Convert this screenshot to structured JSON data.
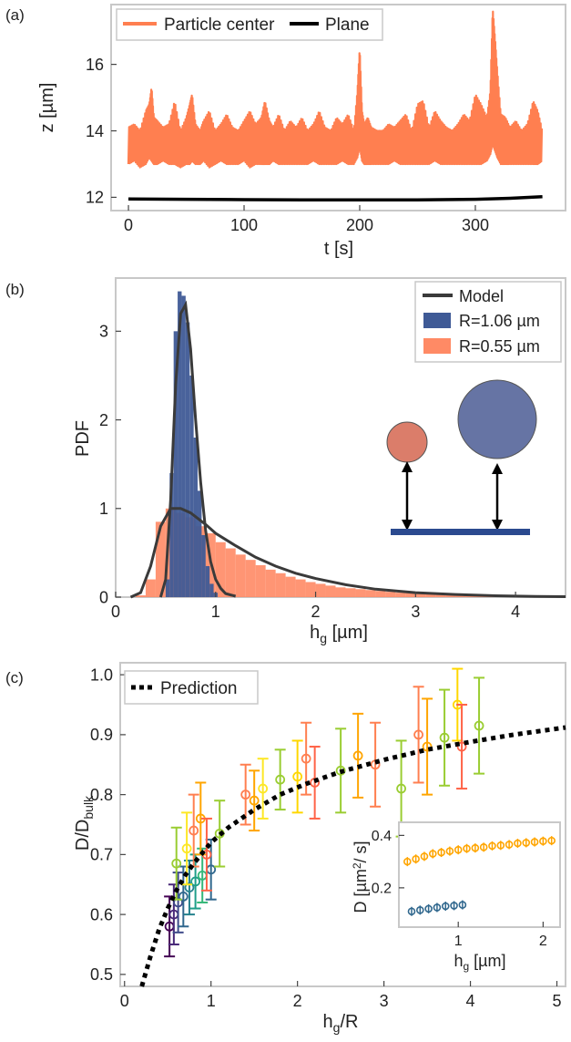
{
  "colors": {
    "orange": "#ff7f50",
    "orange_fill": "#ff8a65",
    "blue": "#3f5a96",
    "blue_circle": "#6674a4",
    "small_circle": "#db7d6a",
    "model": "#3a3a3a",
    "plane": "#000000",
    "frame": "#c8c8c8",
    "gray_curve": "#9a9a9a",
    "plane_bar": "#2b4a8f"
  },
  "panels": {
    "a": {
      "label": "(a)"
    },
    "b": {
      "label": "(b)"
    },
    "c": {
      "label": "(c)"
    }
  },
  "chart_data": [
    {
      "id": "a",
      "type": "line",
      "xlabel": "t [s]",
      "ylabel": "z [µm]",
      "xlim": [
        -15,
        378
      ],
      "ylim": [
        11.6,
        17.8
      ],
      "xticks": [
        0,
        100,
        200,
        300
      ],
      "yticks": [
        12,
        14,
        16
      ],
      "legend_position": "top",
      "series": [
        {
          "name": "Particle center",
          "color": "#ff7f50",
          "t": [
            0,
            5,
            10,
            15,
            18,
            20,
            22,
            25,
            30,
            35,
            40,
            45,
            50,
            53,
            55,
            58,
            62,
            65,
            70,
            75,
            80,
            85,
            90,
            95,
            100,
            105,
            110,
            115,
            118,
            122,
            125,
            130,
            135,
            140,
            145,
            150,
            155,
            160,
            165,
            170,
            175,
            180,
            185,
            190,
            195,
            198,
            200,
            202,
            204,
            207,
            210,
            215,
            220,
            225,
            230,
            235,
            240,
            245,
            250,
            255,
            260,
            265,
            270,
            275,
            280,
            285,
            290,
            295,
            300,
            305,
            310,
            313,
            315,
            317,
            319,
            322,
            326,
            330,
            335,
            340,
            345,
            350,
            354,
            358
          ],
          "z_upper": [
            14.1,
            14.2,
            14.0,
            14.6,
            14.8,
            15.3,
            14.4,
            14.3,
            14.1,
            14.2,
            14.9,
            14.0,
            14.4,
            14.8,
            15.1,
            14.2,
            14.0,
            14.3,
            14.6,
            14.0,
            14.2,
            14.5,
            14.1,
            14.0,
            14.3,
            14.6,
            14.2,
            14.4,
            14.9,
            14.3,
            14.1,
            14.5,
            14.0,
            14.3,
            14.1,
            14.4,
            14.0,
            14.2,
            14.6,
            14.1,
            14.0,
            14.4,
            14.2,
            14.5,
            14.0,
            15.2,
            16.5,
            14.6,
            14.2,
            14.4,
            14.1,
            14.0,
            14.0,
            14.2,
            14.1,
            14.3,
            14.5,
            14.0,
            14.8,
            14.9,
            14.1,
            14.6,
            14.3,
            14.1,
            14.0,
            14.2,
            14.5,
            14.3,
            15.1,
            14.8,
            14.4,
            15.2,
            17.7,
            16.8,
            15.8,
            14.5,
            14.4,
            14.1,
            14.3,
            14.0,
            14.2,
            14.9,
            14.6,
            14.0
          ],
          "z_lower": [
            13.0,
            13.1,
            12.9,
            13.0,
            13.2,
            13.1,
            13.0,
            13.0,
            13.1,
            13.0,
            13.0,
            12.9,
            13.0,
            13.0,
            13.1,
            13.0,
            13.0,
            13.1,
            12.9,
            13.0,
            13.1,
            13.0,
            13.0,
            13.0,
            13.1,
            12.9,
            13.0,
            13.0,
            13.0,
            13.0,
            13.1,
            13.0,
            13.0,
            13.0,
            13.0,
            13.0,
            13.0,
            13.1,
            13.0,
            13.0,
            13.0,
            13.0,
            13.1,
            13.0,
            13.0,
            13.2,
            13.5,
            13.1,
            13.0,
            13.0,
            13.0,
            13.0,
            13.0,
            13.0,
            13.1,
            13.0,
            13.0,
            13.0,
            13.0,
            13.0,
            13.0,
            13.1,
            13.0,
            13.0,
            13.0,
            13.0,
            13.0,
            13.0,
            13.0,
            13.0,
            13.1,
            13.3,
            13.6,
            13.4,
            13.2,
            13.0,
            13.0,
            13.0,
            13.0,
            13.0,
            13.0,
            13.0,
            13.0,
            13.1
          ]
        },
        {
          "name": "Plane",
          "color": "#000000",
          "t": [
            0,
            50,
            100,
            150,
            200,
            250,
            300,
            330,
            358
          ],
          "z": [
            11.95,
            11.94,
            11.93,
            11.92,
            11.92,
            11.92,
            11.94,
            11.97,
            12.02
          ]
        }
      ]
    },
    {
      "id": "b",
      "type": "bar",
      "xlabel": "hg [µm]",
      "ylabel": "PDF",
      "xlim": [
        0,
        4.5
      ],
      "ylim": [
        0,
        3.6
      ],
      "xticks": [
        0,
        1,
        2,
        3,
        4
      ],
      "yticks": [
        0,
        1,
        2,
        3
      ],
      "legend_position": "top-right",
      "legend": [
        "Model",
        "R=1.06 µm",
        "R=0.55 µm"
      ],
      "hist_large": {
        "name": "R=1.06 µm",
        "color": "#3f5a96",
        "x": [
          0.52,
          0.56,
          0.6,
          0.64,
          0.68,
          0.72,
          0.76,
          0.8,
          0.84,
          0.88,
          0.92,
          0.96,
          1.0
        ],
        "values": [
          0.2,
          1.4,
          3.0,
          3.45,
          3.4,
          3.1,
          2.5,
          1.8,
          1.2,
          0.7,
          0.35,
          0.15,
          0.05
        ]
      },
      "hist_small": {
        "name": "R=0.55 µm",
        "color": "#ff8a65",
        "x": [
          0.25,
          0.35,
          0.45,
          0.55,
          0.65,
          0.75,
          0.85,
          0.95,
          1.05,
          1.15,
          1.25,
          1.35,
          1.45,
          1.55,
          1.65,
          1.75,
          1.85,
          1.95,
          2.05,
          2.15,
          2.25,
          2.35,
          2.45,
          2.55,
          2.65,
          2.75,
          2.85,
          2.95,
          3.05,
          3.15,
          3.25,
          3.35,
          3.45,
          3.55,
          3.65,
          3.75,
          3.85,
          3.95,
          4.05,
          4.15
        ],
        "values": [
          0.02,
          0.2,
          0.85,
          1.0,
          0.95,
          0.9,
          0.8,
          0.72,
          0.62,
          0.55,
          0.48,
          0.42,
          0.36,
          0.31,
          0.27,
          0.23,
          0.2,
          0.17,
          0.15,
          0.13,
          0.11,
          0.1,
          0.09,
          0.08,
          0.07,
          0.06,
          0.05,
          0.05,
          0.04,
          0.04,
          0.03,
          0.03,
          0.03,
          0.02,
          0.02,
          0.02,
          0.02,
          0.01,
          0.01,
          0.01
        ]
      },
      "model_large": {
        "x": [
          0.45,
          0.5,
          0.55,
          0.6,
          0.65,
          0.7,
          0.75,
          0.8,
          0.85,
          0.9,
          0.95,
          1.0,
          1.05,
          1.1,
          1.2
        ],
        "y": [
          0.0,
          0.2,
          1.1,
          2.4,
          3.2,
          3.3,
          2.8,
          2.0,
          1.3,
          0.75,
          0.4,
          0.2,
          0.1,
          0.04,
          0.01
        ]
      },
      "model_small": {
        "x": [
          0.15,
          0.25,
          0.35,
          0.45,
          0.55,
          0.65,
          0.75,
          0.9,
          1.0,
          1.2,
          1.4,
          1.6,
          1.8,
          2.0,
          2.3,
          2.6,
          3.0,
          3.4,
          3.8,
          4.2,
          4.5
        ],
        "y": [
          0.0,
          0.05,
          0.35,
          0.8,
          1.0,
          1.0,
          0.95,
          0.82,
          0.72,
          0.58,
          0.45,
          0.35,
          0.27,
          0.21,
          0.14,
          0.09,
          0.05,
          0.03,
          0.015,
          0.008,
          0.005
        ]
      }
    },
    {
      "id": "c",
      "type": "scatter",
      "xlabel": "hg/R",
      "ylabel": "D/Dbulk",
      "xlim": [
        -0.05,
        5.1
      ],
      "ylim": [
        0.48,
        1.02
      ],
      "xticks": [
        0,
        1,
        2,
        3,
        4,
        5
      ],
      "yticks": [
        0.5,
        0.6,
        0.7,
        0.8,
        0.9,
        1.0
      ],
      "legend_position": "top-left",
      "legend": [
        "Prediction"
      ],
      "prediction": {
        "x": [
          0.2,
          0.3,
          0.4,
          0.5,
          0.6,
          0.7,
          0.8,
          1.0,
          1.2,
          1.5,
          1.8,
          2.1,
          2.5,
          3.0,
          3.5,
          4.0,
          4.5,
          5.1
        ],
        "y": [
          0.48,
          0.53,
          0.575,
          0.61,
          0.64,
          0.665,
          0.685,
          0.72,
          0.745,
          0.775,
          0.8,
          0.818,
          0.838,
          0.858,
          0.875,
          0.888,
          0.9,
          0.912
        ]
      },
      "points": [
        {
          "x": 0.52,
          "y": 0.58,
          "err": 0.05,
          "color": "#440154"
        },
        {
          "x": 0.57,
          "y": 0.6,
          "err": 0.05,
          "color": "#482878"
        },
        {
          "x": 0.62,
          "y": 0.62,
          "err": 0.05,
          "color": "#3e4a89"
        },
        {
          "x": 0.68,
          "y": 0.63,
          "err": 0.05,
          "color": "#31688e"
        },
        {
          "x": 0.75,
          "y": 0.645,
          "err": 0.045,
          "color": "#26828e"
        },
        {
          "x": 0.82,
          "y": 0.655,
          "err": 0.045,
          "color": "#1f9e89"
        },
        {
          "x": 0.9,
          "y": 0.665,
          "err": 0.045,
          "color": "#35b779"
        },
        {
          "x": 1.0,
          "y": 0.675,
          "err": 0.05,
          "color": "#31688e"
        },
        {
          "x": 0.6,
          "y": 0.685,
          "err": 0.06,
          "color": "#9acd32"
        },
        {
          "x": 0.72,
          "y": 0.71,
          "err": 0.06,
          "color": "#fde725"
        },
        {
          "x": 0.8,
          "y": 0.74,
          "err": 0.06,
          "color": "#ff7f50"
        },
        {
          "x": 0.88,
          "y": 0.76,
          "err": 0.06,
          "color": "#ffa500"
        },
        {
          "x": 0.95,
          "y": 0.7,
          "err": 0.06,
          "color": "#ff6347"
        },
        {
          "x": 1.1,
          "y": 0.735,
          "err": 0.055,
          "color": "#9acd32"
        },
        {
          "x": 1.4,
          "y": 0.8,
          "err": 0.05,
          "color": "#ff7f50"
        },
        {
          "x": 1.5,
          "y": 0.79,
          "err": 0.05,
          "color": "#ffa500"
        },
        {
          "x": 1.6,
          "y": 0.81,
          "err": 0.05,
          "color": "#fde725"
        },
        {
          "x": 1.8,
          "y": 0.825,
          "err": 0.05,
          "color": "#9acd32"
        },
        {
          "x": 2.0,
          "y": 0.83,
          "err": 0.06,
          "color": "#ffd700"
        },
        {
          "x": 2.1,
          "y": 0.86,
          "err": 0.06,
          "color": "#ff7f50"
        },
        {
          "x": 2.2,
          "y": 0.82,
          "err": 0.06,
          "color": "#ff6347"
        },
        {
          "x": 2.5,
          "y": 0.84,
          "err": 0.07,
          "color": "#9acd32"
        },
        {
          "x": 2.7,
          "y": 0.865,
          "err": 0.07,
          "color": "#ffa500"
        },
        {
          "x": 2.9,
          "y": 0.85,
          "err": 0.07,
          "color": "#ff7f50"
        },
        {
          "x": 3.2,
          "y": 0.81,
          "err": 0.08,
          "color": "#9acd32"
        },
        {
          "x": 3.4,
          "y": 0.9,
          "err": 0.08,
          "color": "#ff7f50"
        },
        {
          "x": 3.5,
          "y": 0.88,
          "err": 0.08,
          "color": "#ffa500"
        },
        {
          "x": 3.7,
          "y": 0.895,
          "err": 0.08,
          "color": "#9acd32"
        },
        {
          "x": 3.85,
          "y": 0.95,
          "err": 0.06,
          "color": "#ffd700"
        },
        {
          "x": 3.9,
          "y": 0.88,
          "err": 0.07,
          "color": "#ff6347"
        },
        {
          "x": 4.1,
          "y": 0.915,
          "err": 0.08,
          "color": "#9acd32"
        }
      ]
    },
    {
      "id": "c-inset",
      "type": "scatter",
      "xlabel": "hg [µm]",
      "ylabel": "D [µm²/s]",
      "xlim": [
        0.3,
        2.2
      ],
      "ylim": [
        0.05,
        0.45
      ],
      "xticks": [
        1,
        2
      ],
      "yticks": [
        0.2,
        0.4
      ],
      "series": [
        {
          "color": "#ffa500",
          "x": [
            0.4,
            0.5,
            0.6,
            0.7,
            0.8,
            0.9,
            1.0,
            1.1,
            1.2,
            1.3,
            1.4,
            1.5,
            1.6,
            1.7,
            1.8,
            1.9,
            2.0,
            2.1
          ],
          "y": [
            0.3,
            0.31,
            0.32,
            0.33,
            0.335,
            0.34,
            0.345,
            0.35,
            0.352,
            0.355,
            0.36,
            0.362,
            0.365,
            0.37,
            0.372,
            0.375,
            0.378,
            0.38
          ]
        },
        {
          "color": "#31688e",
          "x": [
            0.45,
            0.55,
            0.65,
            0.75,
            0.85,
            0.95,
            1.05
          ],
          "y": [
            0.11,
            0.115,
            0.12,
            0.125,
            0.13,
            0.132,
            0.135
          ]
        }
      ]
    }
  ]
}
